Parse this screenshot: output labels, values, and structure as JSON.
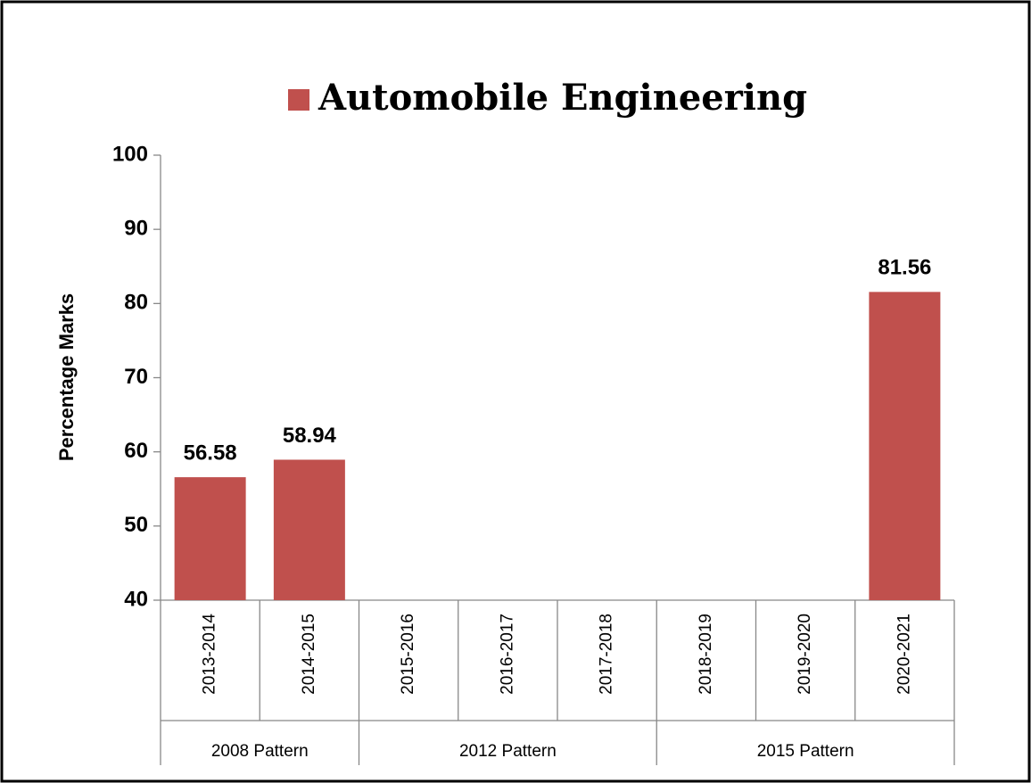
{
  "chart_data": {
    "type": "bar",
    "legend": "Automobile Engineering",
    "color": "#c0504d",
    "ylabel": "Percentage Marks",
    "categories": [
      "2013-2014",
      "2014-2015",
      "2015-2016",
      "2016-2017",
      "2017-2018",
      "2018-2019",
      "2019-2020",
      "2020-2021"
    ],
    "category_groups": [
      "2008 Pattern",
      "2008 Pattern",
      "2012 Pattern",
      "2012 Pattern",
      "2012 Pattern",
      "2015 Pattern",
      "2015 Pattern",
      "2015 Pattern"
    ],
    "values": [
      56.58,
      58.94,
      null,
      null,
      null,
      null,
      null,
      81.56
    ],
    "ylim": [
      40,
      100
    ],
    "yticks": [
      40,
      50,
      60,
      70,
      80,
      90,
      100
    ]
  }
}
